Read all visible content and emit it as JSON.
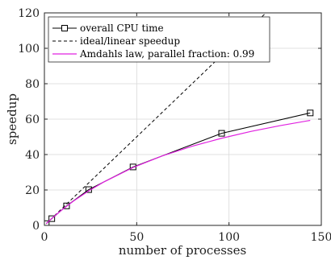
{
  "chart_data": {
    "type": "line",
    "xlabel": "number of processes",
    "ylabel": "speedup",
    "xlim": [
      0,
      150
    ],
    "ylim": [
      0,
      120
    ],
    "xticks": [
      0,
      50,
      100,
      150
    ],
    "yticks": [
      0,
      20,
      40,
      60,
      80,
      100,
      120
    ],
    "grid": true,
    "legend_position": "top-left",
    "series": [
      {
        "name": "overall CPU time",
        "style": "solid",
        "marker": "square",
        "color": "#000000",
        "x": [
          1,
          4,
          12,
          24,
          48,
          96,
          144
        ],
        "y": [
          1,
          3.8,
          11,
          20.2,
          33,
          52,
          63.5
        ]
      },
      {
        "name": "ideal/linear speedup",
        "style": "dashed",
        "marker": "none",
        "color": "#000000",
        "x": [
          1,
          120
        ],
        "y": [
          1,
          120
        ]
      },
      {
        "name": "Amdahls law, parallel fraction: 0.99",
        "style": "solid",
        "marker": "none",
        "color": "#e020e0",
        "x": [
          1,
          4,
          8,
          12,
          16,
          24,
          32,
          48,
          64,
          80,
          96,
          112,
          128,
          144
        ],
        "y": [
          1,
          3.9,
          7.5,
          10.8,
          13.9,
          19.5,
          24.4,
          32.7,
          39.3,
          44.7,
          49.2,
          53.1,
          56.4,
          59.3
        ]
      }
    ]
  }
}
